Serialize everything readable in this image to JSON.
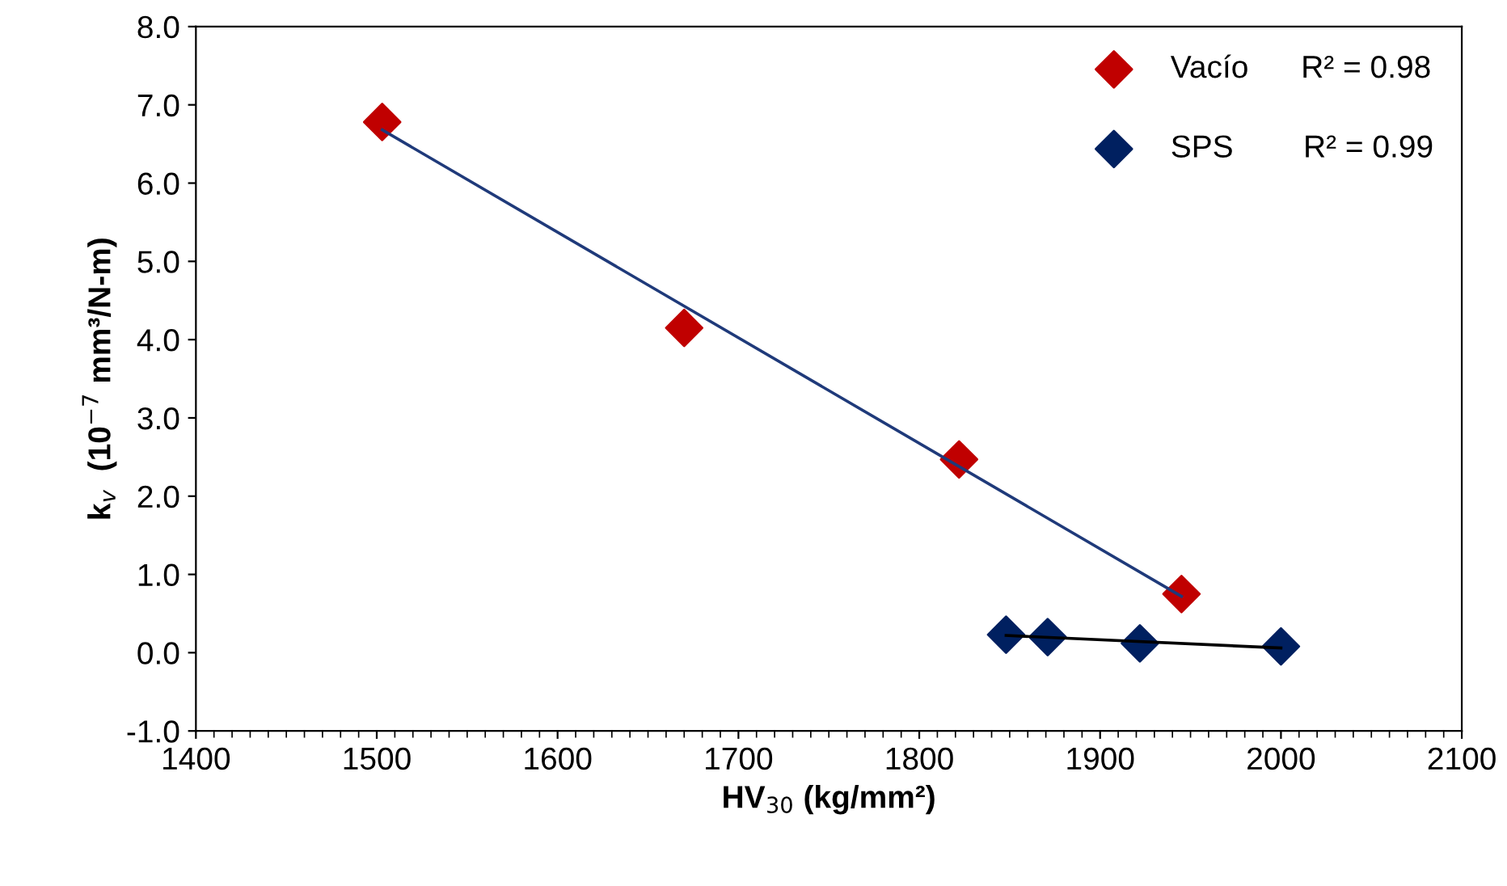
{
  "chart_data": {
    "type": "scatter",
    "xlabel": "HV$_{30}$ (kg/mm²)",
    "ylabel": "k$_{v}$  (10$^{−7}$ mm³/N-m)",
    "xlim": [
      1400,
      2100
    ],
    "xticks": [
      1400,
      1500,
      1600,
      1700,
      1800,
      1900,
      2000,
      2100
    ],
    "ylim": [
      -1.0,
      8.0
    ],
    "yticks": [
      {
        "value": -1,
        "label": "-1.0"
      },
      {
        "value": 0,
        "label": "0.0"
      },
      {
        "value": 1,
        "label": "1.0"
      },
      {
        "value": 2,
        "label": "2.0"
      },
      {
        "value": 3,
        "label": "3.0"
      },
      {
        "value": 4,
        "label": "4.0"
      },
      {
        "value": 5,
        "label": "5.0"
      },
      {
        "value": 6,
        "label": "6.0"
      },
      {
        "value": 7,
        "label": "7.0"
      },
      {
        "value": 8,
        "label": "8.0"
      }
    ],
    "marker": "diamond",
    "grid": false,
    "legend": "top right",
    "series": [
      {
        "name": "Vacío      R² = 0.98",
        "color": "#c00000",
        "x": [
          1503,
          1670,
          1822,
          1945
        ],
        "values": [
          6.78,
          4.15,
          2.47,
          0.75
        ]
      },
      {
        "name": "SPS        R² = 0.99",
        "color": "#002060",
        "x": [
          1848,
          1871,
          1922,
          2000
        ],
        "values": [
          0.23,
          0.2,
          0.12,
          0.08
        ]
      },
      {
        "type": "line",
        "marker": "none",
        "color": "#1f3a7a",
        "x": [
          1503,
          1945
        ],
        "values": [
          6.68,
          0.72
        ]
      },
      {
        "type": "line",
        "marker": "none",
        "color": "#000000",
        "x": [
          1848,
          2000
        ],
        "values": [
          0.22,
          0.06
        ]
      }
    ]
  }
}
